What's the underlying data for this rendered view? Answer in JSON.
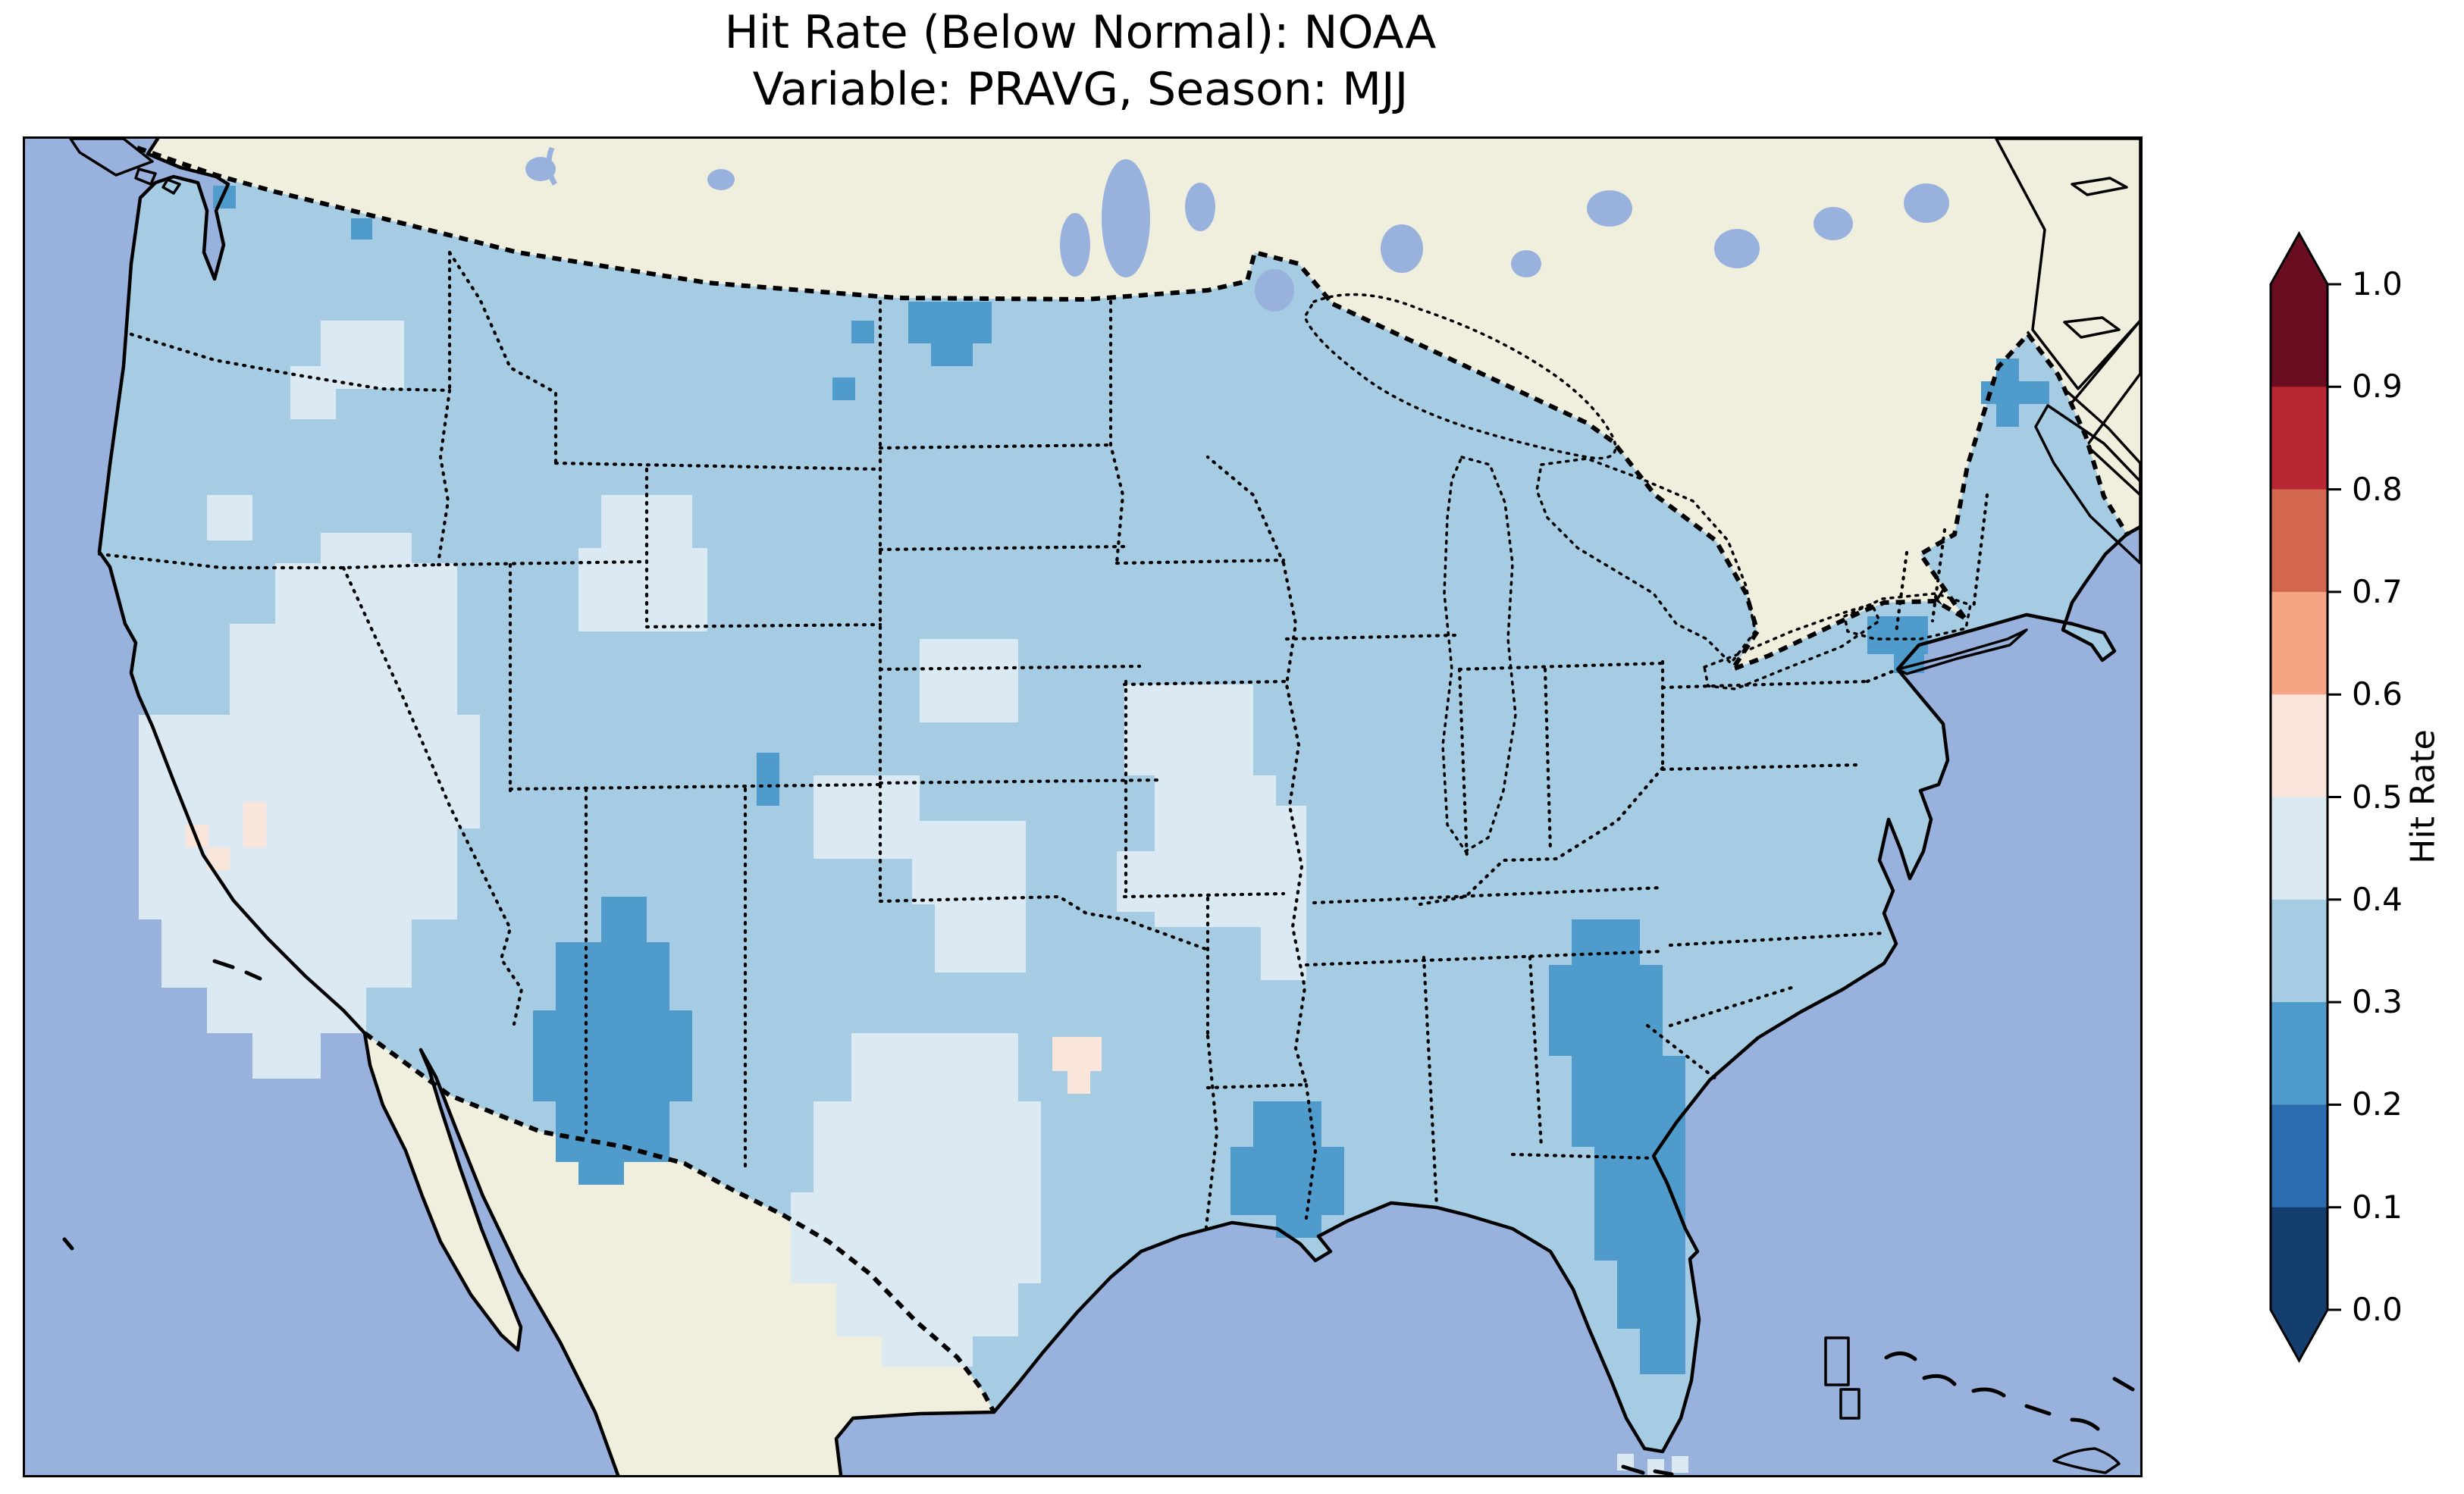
{
  "title": {
    "line1": "Hit Rate (Below Normal): NOAA",
    "line2": "Variable: PRAVG, Season: MJJ"
  },
  "colorbar": {
    "label": "Hit Rate",
    "ticks": [
      "1.0",
      "0.9",
      "0.8",
      "0.7",
      "0.6",
      "0.5",
      "0.4",
      "0.3",
      "0.2",
      "0.1",
      "0.0"
    ],
    "extend": "both",
    "bin_colors_top_to_bottom": [
      "#6b0d21",
      "#b92732",
      "#d3664f",
      "#f4a583",
      "#fae5da",
      "#dbe9f2",
      "#a5cce3",
      "#4f9bcb",
      "#2b6cb0",
      "#143e6e"
    ]
  },
  "colors": {
    "ocean": "#99b2dd",
    "land": "#f0eedc",
    "us_base": "#a5cce3",
    "pale": "#dbe9f2",
    "dark": "#4f9bcb",
    "peach": "#fae5da",
    "frame": "#000000",
    "background": "#ffffff"
  },
  "chart_data": {
    "type": "heatmap",
    "subtype": "geographic gridded map (CONUS)",
    "title": "Hit Rate (Below Normal): NOAA",
    "subtitle": "Variable: PRAVG, Season: MJJ",
    "colorbar_label": "Hit Rate",
    "colorbar_range": [
      0.0,
      1.0
    ],
    "colorbar_tick_step": 0.1,
    "colormap": "RdBu_r, 10 discrete bins, extend arrows both ends",
    "legend_position": "right vertical colorbar",
    "grid": "off",
    "basemap": "beige non-US land, periwinkle ocean and lakes, dotted state borders, dashed country borders",
    "regions": [
      {
        "region": "Most of contiguous US (default field)",
        "hit_rate_bin": "0.3-0.4"
      },
      {
        "region": "California Central Valley / Nevada / western Utah (Great Basin)",
        "hit_rate_bin": "0.4-0.5"
      },
      {
        "region": "Central Texas",
        "hit_rate_bin": "0.4-0.5"
      },
      {
        "region": "Iowa / Missouri / Illinois patches",
        "hit_rate_bin": "0.4-0.5"
      },
      {
        "region": "Nebraska and Kansas patches",
        "hit_rate_bin": "0.4-0.5"
      },
      {
        "region": "Central Montana and Wyoming patches",
        "hit_rate_bin": "0.4-0.5"
      },
      {
        "region": "Eastern New Mexico / West Texas blob",
        "hit_rate_bin": "0.2-0.3"
      },
      {
        "region": "Central Georgia through north-central Florida",
        "hit_rate_bin": "0.2-0.3"
      },
      {
        "region": "Southeast Louisiana (around New Orleans)",
        "hit_rate_bin": "0.2-0.3"
      },
      {
        "region": "Montana / North Dakota Canada-border cells",
        "hit_rate_bin": "0.2-0.3"
      },
      {
        "region": "New York City / Long Island cells",
        "hit_rate_bin": "0.2-0.3"
      },
      {
        "region": "Northern Maine cells",
        "hit_rate_bin": "0.2-0.3"
      },
      {
        "region": "Colorado cell pair",
        "hit_rate_bin": "0.2-0.3"
      },
      {
        "region": "Central California scattered cells",
        "hit_rate_bin": "0.5-0.6"
      },
      {
        "region": "Texas-Oklahoma Red River cells",
        "hit_rate_bin": "0.5-0.6"
      },
      {
        "region": "Florida Keys small cells",
        "hit_rate_bin": "0.4-0.5"
      }
    ]
  }
}
